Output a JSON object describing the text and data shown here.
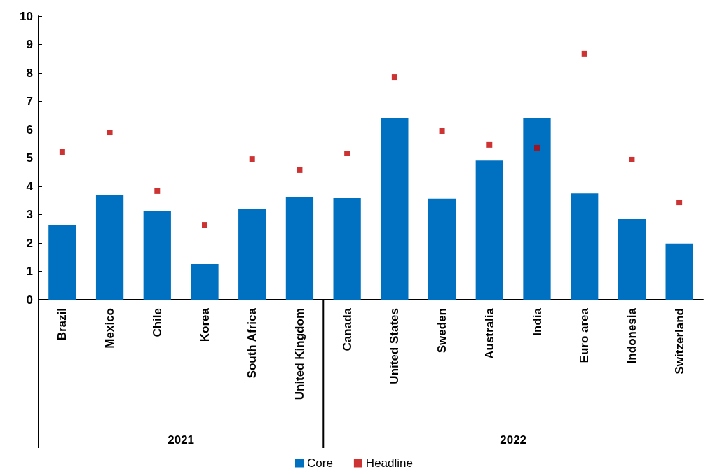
{
  "chart_data": {
    "type": "bar",
    "categories": [
      "Brazil",
      "Mexico",
      "Chile",
      "Korea",
      "South Africa",
      "United Kingdom",
      "Canada",
      "United States",
      "Sweden",
      "Australia",
      "India",
      "Euro area",
      "Indonesia",
      "Switzerland"
    ],
    "series": [
      {
        "name": "Core",
        "color": "#0070c0",
        "values": [
          2.62,
          3.7,
          3.11,
          1.26,
          3.19,
          3.63,
          3.58,
          6.4,
          3.56,
          4.91,
          6.4,
          3.75,
          2.84,
          1.98
        ]
      },
      {
        "name": "Headline",
        "type": "scatter",
        "color": "#c00000",
        "marker": "square",
        "values": [
          5.21,
          5.9,
          3.83,
          2.64,
          4.96,
          4.57,
          5.16,
          7.85,
          5.95,
          5.46,
          5.36,
          8.67,
          4.94,
          3.43
        ]
      }
    ],
    "annotations": [
      "2021",
      "2022"
    ],
    "ylim": [
      0,
      10
    ],
    "yticks": [
      0,
      1,
      2,
      3,
      4,
      5,
      6,
      7,
      8,
      9,
      10
    ],
    "grid": false,
    "legend": "bottom"
  }
}
